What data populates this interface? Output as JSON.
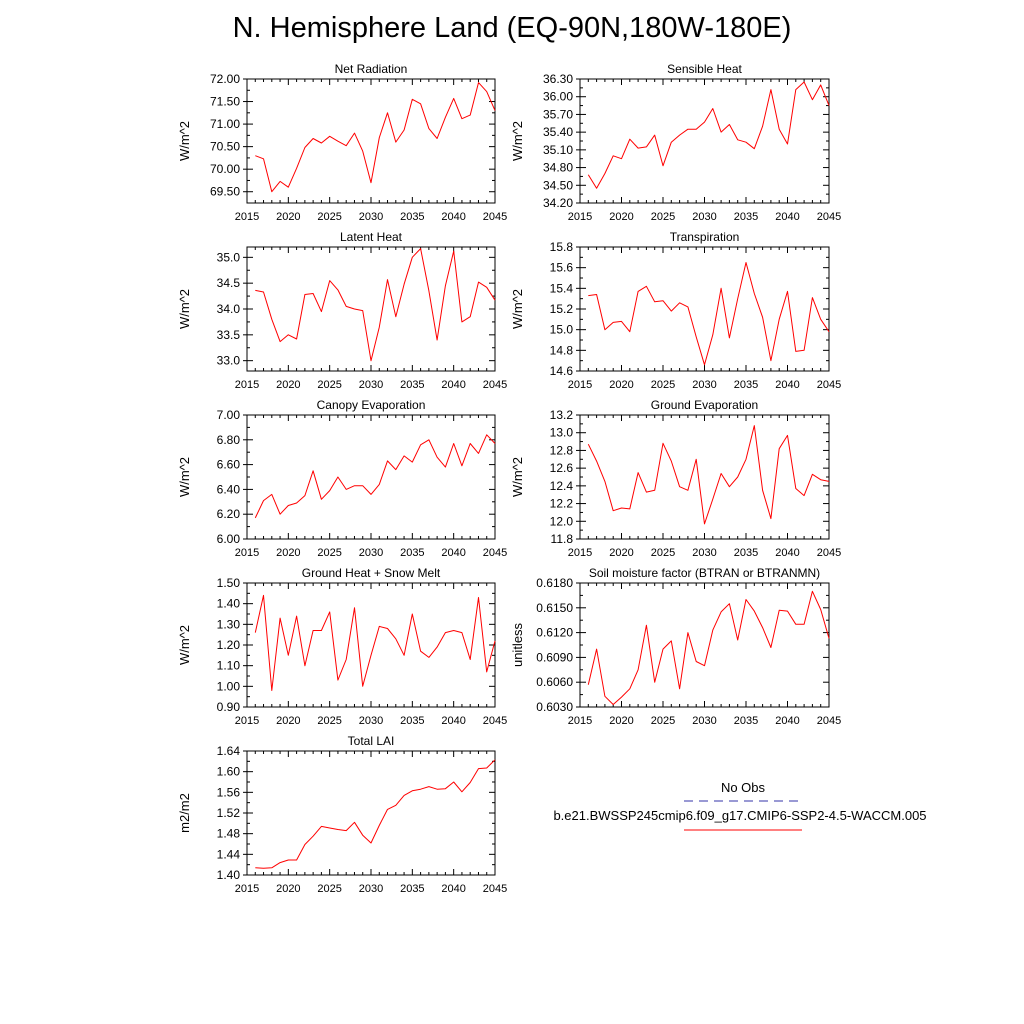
{
  "title": "N. Hemisphere Land (EQ-90N,180W-180E)",
  "legend": {
    "entries": [
      {
        "label": "No Obs",
        "color": "#3333aa",
        "dashed": true
      },
      {
        "label": "b.e21.BWSSP245cmip6.f09_g17.CMIP6-SSP2-4.5-WACCM.005",
        "color": "#ff0000",
        "dashed": false
      }
    ]
  },
  "chart_data": [
    {
      "type": "line",
      "title": "Net Radiation",
      "xlabel": "",
      "ylabel": "W/m^2",
      "xlim": [
        2015,
        2045
      ],
      "ylim": [
        69.25,
        72.0
      ],
      "x_ticks": [
        2015,
        2020,
        2025,
        2030,
        2035,
        2040,
        2045
      ],
      "y_ticks": [
        "69.50",
        "70.00",
        "70.50",
        "71.00",
        "71.50",
        "72.00"
      ],
      "series": [
        {
          "color": "#ff0000",
          "x": [
            2016,
            2017,
            2018,
            2019,
            2020,
            2021,
            2022,
            2023,
            2024,
            2025,
            2026,
            2027,
            2028,
            2029,
            2030,
            2031,
            2032,
            2033,
            2034,
            2035,
            2036,
            2037,
            2038,
            2039,
            2040,
            2041,
            2042,
            2043,
            2044,
            2045
          ],
          "values": [
            70.3,
            70.23,
            69.5,
            69.73,
            69.6,
            70.02,
            70.48,
            70.68,
            70.58,
            70.73,
            70.62,
            70.52,
            70.8,
            70.4,
            69.7,
            70.7,
            71.25,
            70.6,
            70.87,
            71.55,
            71.45,
            70.9,
            70.68,
            71.15,
            71.57,
            71.12,
            71.2,
            71.92,
            71.72,
            71.3
          ]
        }
      ]
    },
    {
      "type": "line",
      "title": "Sensible Heat",
      "xlabel": "",
      "ylabel": "W/m^2",
      "xlim": [
        2015,
        2045
      ],
      "ylim": [
        34.2,
        36.3
      ],
      "x_ticks": [
        2015,
        2020,
        2025,
        2030,
        2035,
        2040,
        2045
      ],
      "y_ticks": [
        "34.20",
        "34.50",
        "34.80",
        "35.10",
        "35.40",
        "35.70",
        "36.00",
        "36.30"
      ],
      "series": [
        {
          "color": "#ff0000",
          "x": [
            2016,
            2017,
            2018,
            2019,
            2020,
            2021,
            2022,
            2023,
            2024,
            2025,
            2026,
            2027,
            2028,
            2029,
            2030,
            2031,
            2032,
            2033,
            2034,
            2035,
            2036,
            2037,
            2038,
            2039,
            2040,
            2041,
            2042,
            2043,
            2044,
            2045
          ],
          "values": [
            34.68,
            34.45,
            34.7,
            35.0,
            34.95,
            35.28,
            35.13,
            35.15,
            35.35,
            34.83,
            35.23,
            35.35,
            35.45,
            35.45,
            35.57,
            35.8,
            35.4,
            35.53,
            35.27,
            35.23,
            35.12,
            35.5,
            36.12,
            35.45,
            35.2,
            36.12,
            36.25,
            35.95,
            36.2,
            35.85
          ]
        }
      ]
    },
    {
      "type": "line",
      "title": "Latent Heat",
      "xlabel": "",
      "ylabel": "W/m^2",
      "xlim": [
        2015,
        2045
      ],
      "ylim": [
        32.8,
        35.2
      ],
      "x_ticks": [
        2015,
        2020,
        2025,
        2030,
        2035,
        2040,
        2045
      ],
      "y_ticks": [
        "33.0",
        "33.5",
        "34.0",
        "34.5",
        "35.0"
      ],
      "series": [
        {
          "color": "#ff0000",
          "x": [
            2016,
            2017,
            2018,
            2019,
            2020,
            2021,
            2022,
            2023,
            2024,
            2025,
            2026,
            2027,
            2028,
            2029,
            2030,
            2031,
            2032,
            2033,
            2034,
            2035,
            2036,
            2037,
            2038,
            2039,
            2040,
            2041,
            2042,
            2043,
            2044,
            2045
          ],
          "values": [
            34.36,
            34.33,
            33.8,
            33.37,
            33.5,
            33.42,
            34.28,
            34.3,
            33.95,
            34.55,
            34.37,
            34.05,
            34.0,
            33.97,
            33.0,
            33.65,
            34.57,
            33.85,
            34.48,
            35.0,
            35.17,
            34.35,
            33.4,
            34.45,
            35.12,
            33.75,
            33.85,
            34.52,
            34.42,
            34.17
          ]
        }
      ]
    },
    {
      "type": "line",
      "title": "Transpiration",
      "xlabel": "",
      "ylabel": "W/m^2",
      "xlim": [
        2015,
        2045
      ],
      "ylim": [
        14.6,
        15.8
      ],
      "x_ticks": [
        2015,
        2020,
        2025,
        2030,
        2035,
        2040,
        2045
      ],
      "y_ticks": [
        "14.6",
        "14.8",
        "15.0",
        "15.2",
        "15.4",
        "15.6",
        "15.8"
      ],
      "series": [
        {
          "color": "#ff0000",
          "x": [
            2016,
            2017,
            2018,
            2019,
            2020,
            2021,
            2022,
            2023,
            2024,
            2025,
            2026,
            2027,
            2028,
            2029,
            2030,
            2031,
            2032,
            2033,
            2034,
            2035,
            2036,
            2037,
            2038,
            2039,
            2040,
            2041,
            2042,
            2043,
            2044,
            2045
          ],
          "values": [
            15.33,
            15.34,
            15.0,
            15.07,
            15.08,
            14.98,
            15.37,
            15.42,
            15.27,
            15.28,
            15.18,
            15.26,
            15.22,
            14.93,
            14.66,
            14.95,
            15.4,
            14.92,
            15.3,
            15.65,
            15.35,
            15.12,
            14.7,
            15.1,
            15.37,
            14.79,
            14.8,
            15.31,
            15.1,
            14.98
          ]
        }
      ]
    },
    {
      "type": "line",
      "title": "Canopy Evaporation",
      "xlabel": "",
      "ylabel": "W/m^2",
      "xlim": [
        2015,
        2045
      ],
      "ylim": [
        6.0,
        7.0
      ],
      "x_ticks": [
        2015,
        2020,
        2025,
        2030,
        2035,
        2040,
        2045
      ],
      "y_ticks": [
        "6.00",
        "6.20",
        "6.40",
        "6.60",
        "6.80",
        "7.00"
      ],
      "series": [
        {
          "color": "#ff0000",
          "x": [
            2016,
            2017,
            2018,
            2019,
            2020,
            2021,
            2022,
            2023,
            2024,
            2025,
            2026,
            2027,
            2028,
            2029,
            2030,
            2031,
            2032,
            2033,
            2034,
            2035,
            2036,
            2037,
            2038,
            2039,
            2040,
            2041,
            2042,
            2043,
            2044,
            2045
          ],
          "values": [
            6.17,
            6.31,
            6.36,
            6.2,
            6.27,
            6.29,
            6.35,
            6.55,
            6.32,
            6.39,
            6.5,
            6.4,
            6.43,
            6.43,
            6.36,
            6.44,
            6.63,
            6.56,
            6.67,
            6.62,
            6.76,
            6.8,
            6.66,
            6.58,
            6.77,
            6.59,
            6.77,
            6.69,
            6.84,
            6.77
          ]
        }
      ]
    },
    {
      "type": "line",
      "title": "Ground Evaporation",
      "xlabel": "",
      "ylabel": "W/m^2",
      "xlim": [
        2015,
        2045
      ],
      "ylim": [
        11.8,
        13.2
      ],
      "x_ticks": [
        2015,
        2020,
        2025,
        2030,
        2035,
        2040,
        2045
      ],
      "y_ticks": [
        "11.8",
        "12.0",
        "12.2",
        "12.4",
        "12.6",
        "12.8",
        "13.0",
        "13.2"
      ],
      "series": [
        {
          "color": "#ff0000",
          "x": [
            2016,
            2017,
            2018,
            2019,
            2020,
            2021,
            2022,
            2023,
            2024,
            2025,
            2026,
            2027,
            2028,
            2029,
            2030,
            2031,
            2032,
            2033,
            2034,
            2035,
            2036,
            2037,
            2038,
            2039,
            2040,
            2041,
            2042,
            2043,
            2044,
            2045
          ],
          "values": [
            12.87,
            12.68,
            12.45,
            12.12,
            12.15,
            12.14,
            12.55,
            12.33,
            12.35,
            12.88,
            12.68,
            12.39,
            12.35,
            12.7,
            11.97,
            12.25,
            12.54,
            12.39,
            12.5,
            12.7,
            13.08,
            12.35,
            12.03,
            12.82,
            12.97,
            12.37,
            12.29,
            12.53,
            12.47,
            12.45
          ]
        }
      ]
    },
    {
      "type": "line",
      "title": "Ground Heat + Snow Melt",
      "xlabel": "",
      "ylabel": "W/m^2",
      "xlim": [
        2015,
        2045
      ],
      "ylim": [
        0.9,
        1.5
      ],
      "x_ticks": [
        2015,
        2020,
        2025,
        2030,
        2035,
        2040,
        2045
      ],
      "y_ticks": [
        "0.90",
        "1.00",
        "1.10",
        "1.20",
        "1.30",
        "1.40",
        "1.50"
      ],
      "series": [
        {
          "color": "#ff0000",
          "x": [
            2016,
            2017,
            2018,
            2019,
            2020,
            2021,
            2022,
            2023,
            2024,
            2025,
            2026,
            2027,
            2028,
            2029,
            2030,
            2031,
            2032,
            2033,
            2034,
            2035,
            2036,
            2037,
            2038,
            2039,
            2040,
            2041,
            2042,
            2043,
            2044,
            2045
          ],
          "values": [
            1.26,
            1.44,
            0.98,
            1.33,
            1.15,
            1.34,
            1.1,
            1.27,
            1.27,
            1.36,
            1.03,
            1.13,
            1.38,
            1.0,
            1.15,
            1.29,
            1.28,
            1.23,
            1.15,
            1.35,
            1.17,
            1.14,
            1.19,
            1.26,
            1.27,
            1.26,
            1.13,
            1.43,
            1.07,
            1.22
          ]
        }
      ]
    },
    {
      "type": "line",
      "title": "Soil moisture factor (BTRAN or BTRANMN)",
      "xlabel": "",
      "ylabel": "unitless",
      "xlim": [
        2015,
        2045
      ],
      "ylim": [
        0.603,
        0.618
      ],
      "x_ticks": [
        2015,
        2020,
        2025,
        2030,
        2035,
        2040,
        2045
      ],
      "y_ticks": [
        "0.6030",
        "0.6060",
        "0.6090",
        "0.6120",
        "0.6150",
        "0.6180"
      ],
      "series": [
        {
          "color": "#ff0000",
          "x": [
            2016,
            2017,
            2018,
            2019,
            2020,
            2021,
            2022,
            2023,
            2024,
            2025,
            2026,
            2027,
            2028,
            2029,
            2030,
            2031,
            2032,
            2033,
            2034,
            2035,
            2036,
            2037,
            2038,
            2039,
            2040,
            2041,
            2042,
            2043,
            2044,
            2045
          ],
          "values": [
            0.6057,
            0.61,
            0.6043,
            0.6033,
            0.6042,
            0.6052,
            0.6075,
            0.6129,
            0.606,
            0.61,
            0.611,
            0.6052,
            0.612,
            0.6085,
            0.608,
            0.6123,
            0.6145,
            0.6155,
            0.6111,
            0.616,
            0.6146,
            0.6126,
            0.6102,
            0.6147,
            0.6146,
            0.613,
            0.613,
            0.617,
            0.6148,
            0.6113
          ]
        }
      ]
    },
    {
      "type": "line",
      "title": "Total LAI",
      "xlabel": "",
      "ylabel": "m2/m2",
      "xlim": [
        2015,
        2045
      ],
      "ylim": [
        1.4,
        1.64
      ],
      "x_ticks": [
        2015,
        2020,
        2025,
        2030,
        2035,
        2040,
        2045
      ],
      "y_ticks": [
        "1.40",
        "1.44",
        "1.48",
        "1.52",
        "1.56",
        "1.60",
        "1.64"
      ],
      "series": [
        {
          "color": "#ff0000",
          "x": [
            2016,
            2017,
            2018,
            2019,
            2020,
            2021,
            2022,
            2023,
            2024,
            2025,
            2026,
            2027,
            2028,
            2029,
            2030,
            2031,
            2032,
            2033,
            2034,
            2035,
            2036,
            2037,
            2038,
            2039,
            2040,
            2041,
            2042,
            2043,
            2044,
            2045
          ],
          "values": [
            1.414,
            1.413,
            1.414,
            1.424,
            1.429,
            1.429,
            1.459,
            1.475,
            1.494,
            1.491,
            1.488,
            1.486,
            1.502,
            1.477,
            1.462,
            1.496,
            1.527,
            1.535,
            1.554,
            1.563,
            1.566,
            1.571,
            1.566,
            1.567,
            1.58,
            1.561,
            1.579,
            1.606,
            1.607,
            1.623
          ]
        }
      ]
    }
  ]
}
